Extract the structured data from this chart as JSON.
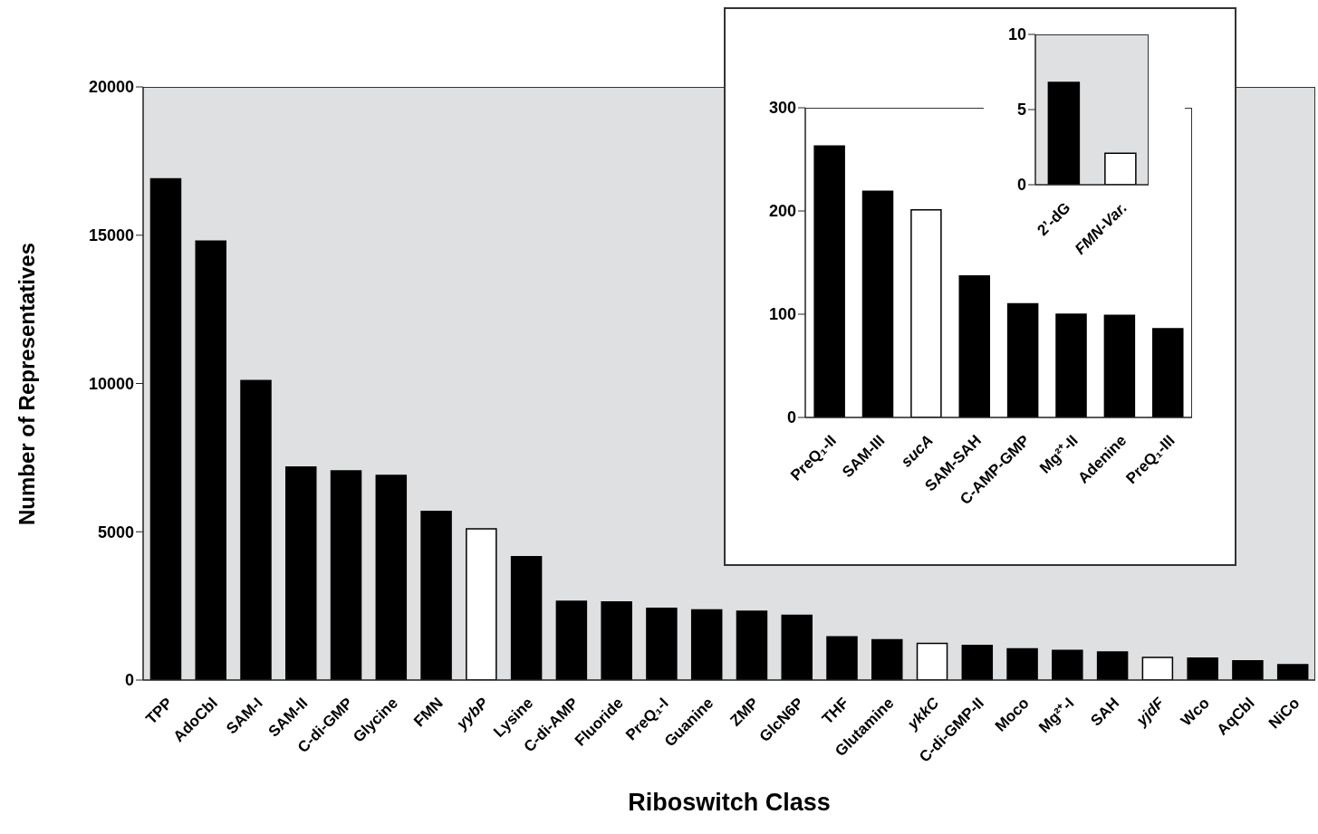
{
  "chart_data": [
    {
      "type": "bar",
      "xlabel": "Riboswitch Class",
      "ylabel": "Number of Representatives",
      "categories": [
        "TPP",
        "AdoCbl",
        "SAM-I",
        "SAM-II",
        "C-di-GMP",
        "Glycine",
        "FMN",
        "yybP",
        "Lysine",
        "C-di-AMP",
        "Fluoride",
        "PreQ₁-I",
        "Guanine",
        "ZMP",
        "GlcN6P",
        "THF",
        "Glutamine",
        "ykkC",
        "C-di-GMP-II",
        "Moco",
        "Mg²⁺-I",
        "SAH",
        "yjdF",
        "Wco",
        "AqCbl",
        "NiCo"
      ],
      "values": [
        16900,
        14800,
        10100,
        7180,
        7050,
        6900,
        5690,
        5100,
        4160,
        2660,
        2630,
        2420,
        2370,
        2320,
        2180,
        1460,
        1360,
        1240,
        1170,
        1050,
        1000,
        950,
        760,
        740,
        650,
        520
      ],
      "colors": [
        "#000000",
        "#000000",
        "#000000",
        "#000000",
        "#000000",
        "#000000",
        "#000000",
        "#ffffff",
        "#000000",
        "#000000",
        "#000000",
        "#000000",
        "#000000",
        "#000000",
        "#000000",
        "#000000",
        "#000000",
        "#ffffff",
        "#000000",
        "#000000",
        "#000000",
        "#000000",
        "#ffffff",
        "#000000",
        "#000000",
        "#000000"
      ],
      "ylim": [
        0,
        20000
      ],
      "yticks": [
        0,
        5000,
        10000,
        15000,
        20000
      ]
    },
    {
      "type": "bar",
      "categories": [
        "PreQ₁-II",
        "SAM-III",
        "sucA",
        "SAM-SAH",
        "C-AMP-GMP",
        "Mg²⁺-II",
        "Adenine",
        "PreQ₁-III"
      ],
      "values": [
        263,
        219,
        201,
        137,
        110,
        100,
        99,
        86
      ],
      "colors": [
        "#000000",
        "#000000",
        "#ffffff",
        "#000000",
        "#000000",
        "#000000",
        "#000000",
        "#000000"
      ],
      "ylim": [
        0,
        300
      ],
      "yticks": [
        0,
        100,
        200,
        300
      ]
    },
    {
      "type": "bar",
      "categories": [
        "2’-dG",
        "FMN-Var."
      ],
      "values": [
        6.8,
        2.1
      ],
      "colors": [
        "#000000",
        "#ffffff"
      ],
      "ylim": [
        0,
        10
      ],
      "yticks": [
        0,
        5,
        10
      ]
    }
  ]
}
